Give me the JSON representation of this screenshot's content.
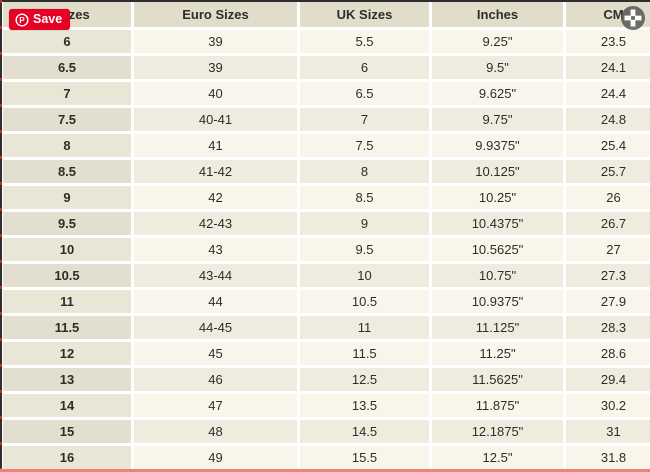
{
  "pinterest": {
    "save_label": "Save",
    "brand_color": "#e60023",
    "logo_icon": "pinterest-p-logo"
  },
  "move_handle": {
    "icon": "move-cross-icon"
  },
  "size_table": {
    "column_keys": [
      "us",
      "euro",
      "uk",
      "inches",
      "cm"
    ],
    "headers": [
      "S Sizes",
      "Euro Sizes",
      "UK Sizes",
      "Inches",
      "CM"
    ],
    "rows": [
      [
        "6",
        "39",
        "5.5",
        "9.25\"",
        "23.5"
      ],
      [
        "6.5",
        "39",
        "6",
        "9.5\"",
        "24.1"
      ],
      [
        "7",
        "40",
        "6.5",
        "9.625\"",
        "24.4"
      ],
      [
        "7.5",
        "40-41",
        "7",
        "9.75\"",
        "24.8"
      ],
      [
        "8",
        "41",
        "7.5",
        "9.9375\"",
        "25.4"
      ],
      [
        "8.5",
        "41-42",
        "8",
        "10.125\"",
        "25.7"
      ],
      [
        "9",
        "42",
        "8.5",
        "10.25\"",
        "26"
      ],
      [
        "9.5",
        "42-43",
        "9",
        "10.4375\"",
        "26.7"
      ],
      [
        "10",
        "43",
        "9.5",
        "10.5625\"",
        "27"
      ],
      [
        "10.5",
        "43-44",
        "10",
        "10.75\"",
        "27.3"
      ],
      [
        "11",
        "44",
        "10.5",
        "10.9375\"",
        "27.9"
      ],
      [
        "11.5",
        "44-45",
        "11",
        "11.125\"",
        "28.3"
      ],
      [
        "12",
        "45",
        "11.5",
        "11.25\"",
        "28.6"
      ],
      [
        "13",
        "46",
        "12.5",
        "11.5625\"",
        "29.4"
      ],
      [
        "14",
        "47",
        "13.5",
        "11.875\"",
        "30.2"
      ],
      [
        "15",
        "48",
        "14.5",
        "12.1875\"",
        "31"
      ],
      [
        "16",
        "49",
        "15.5",
        "12.5\"",
        "31.8"
      ]
    ]
  },
  "colors": {
    "header_bg": "#e2ddca",
    "first_col_odd_bg": "#eae6d5",
    "first_col_even_bg": "#e3dfce",
    "row_odd_bg": "#f8f6ea",
    "row_even_bg": "#efecdf",
    "text": "#2e2d29",
    "pinterest_red": "#e60023",
    "bottom_edge": "#ee8277",
    "dark_edge": "#2f2f2f"
  }
}
